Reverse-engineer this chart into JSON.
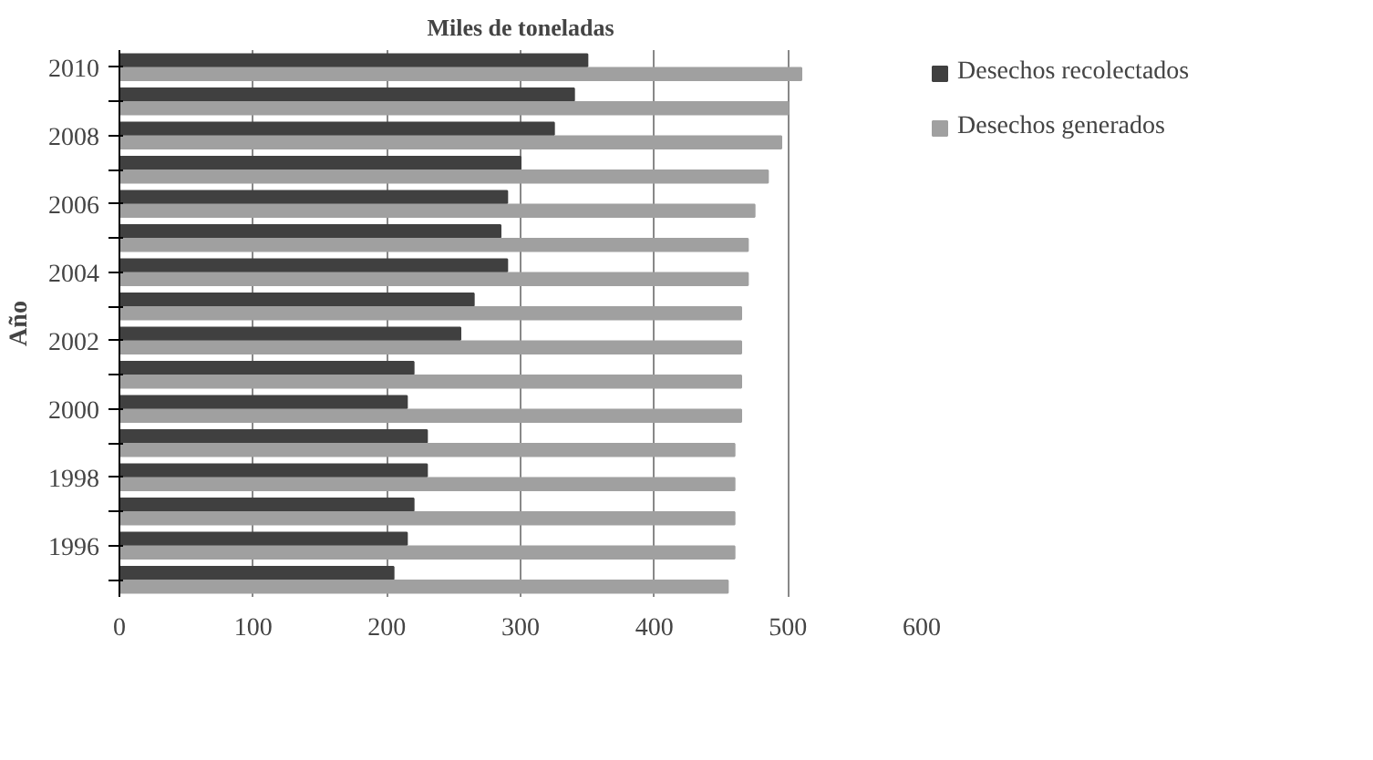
{
  "chart_data": {
    "type": "bar",
    "orientation": "horizontal",
    "title": "Miles de toneladas",
    "ylabel": "Año",
    "categories": [
      "2010",
      null,
      "2008",
      null,
      "2006",
      null,
      "2004",
      null,
      "2002",
      null,
      "2000",
      null,
      "1998",
      null,
      "1996",
      null
    ],
    "series": [
      {
        "name": "Desechos recolectados",
        "color": "#404040",
        "values": [
          350,
          340,
          325,
          300,
          290,
          285,
          290,
          265,
          255,
          220,
          215,
          230,
          230,
          220,
          215,
          205
        ]
      },
      {
        "name": "Desechos generados",
        "color": "#a0a0a0",
        "values": [
          510,
          500,
          495,
          485,
          475,
          470,
          470,
          465,
          465,
          465,
          465,
          460,
          460,
          460,
          460,
          455
        ]
      }
    ],
    "xlim": [
      0,
      600
    ],
    "xticks": [
      0,
      100,
      200,
      300,
      400,
      500,
      600
    ],
    "grid": "x",
    "legend": "right"
  }
}
